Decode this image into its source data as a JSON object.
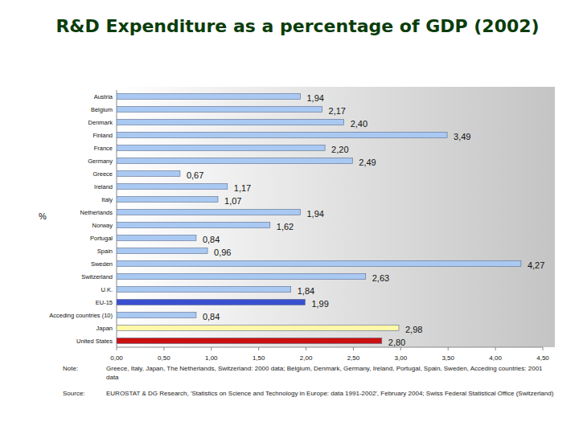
{
  "chart_data": {
    "type": "bar",
    "title": "R&D Expenditure as a percentage of GDP (2002)",
    "axis_label": "%",
    "orientation": "horizontal",
    "data_labels": true,
    "grid": false,
    "categories": [
      "Austria",
      "Belgium",
      "Denmark",
      "Finland",
      "France",
      "Germany",
      "Greece",
      "Ireland",
      "Italy",
      "Netherlands",
      "Norway",
      "Portugal",
      "Spain",
      "Sweden",
      "Switzerland",
      "U.K.",
      "EU-15",
      "Acceding countries (10)",
      "Japan",
      "United States"
    ],
    "values": [
      1.94,
      2.17,
      2.4,
      3.49,
      2.2,
      2.49,
      0.67,
      1.17,
      1.07,
      1.94,
      1.62,
      0.84,
      0.96,
      4.27,
      2.63,
      1.84,
      1.99,
      0.84,
      2.98,
      2.8
    ],
    "value_labels": [
      "1,94",
      "2,17",
      "2,40",
      "3,49",
      "2,20",
      "2,49",
      "0,67",
      "1,17",
      "1,07",
      "1,94",
      "1,62",
      "0,84",
      "0,96",
      "4,27",
      "2,63",
      "1,84",
      "1,99",
      "0,84",
      "2,98",
      "2,80"
    ],
    "colors": [
      "#a9c9f2",
      "#a9c9f2",
      "#a9c9f2",
      "#a9c9f2",
      "#a9c9f2",
      "#a9c9f2",
      "#a9c9f2",
      "#a9c9f2",
      "#a9c9f2",
      "#a9c9f2",
      "#a9c9f2",
      "#a9c9f2",
      "#a9c9f2",
      "#a9c9f2",
      "#a9c9f2",
      "#a9c9f2",
      "#3a4fd0",
      "#a9c9f2",
      "#fff8a8",
      "#cc1010"
    ],
    "xlim": [
      0,
      4.5
    ],
    "xticks": [
      {
        "value": 0,
        "label": "0,00"
      },
      {
        "value": 0.5,
        "label": "0,50"
      },
      {
        "value": 1,
        "label": "1,00"
      },
      {
        "value": 1.5,
        "label": "1,50"
      },
      {
        "value": 2,
        "label": "2,00"
      },
      {
        "value": 2.5,
        "label": "2,50"
      },
      {
        "value": 3,
        "label": "3,00"
      },
      {
        "value": 3.5,
        "label": "3,50"
      },
      {
        "value": 4,
        "label": "4,00"
      },
      {
        "value": 4.5,
        "label": "4,50"
      }
    ],
    "notes": [
      {
        "label": "Note:",
        "text": "Greece, Italy, Japan, The Netherlands, Switzerland: 2000 data; Belgium, Denmark, Germany, Ireland, Portugal, Spain, Sweden, Acceding countries: 2001 data"
      },
      {
        "label": "Source:",
        "text": "EUROSTAT & DG Research, 'Statistics on Science and Technology in Europe: data 1991-2002', February 2004; Swiss Federal Statistical Office (Switzerland)"
      }
    ]
  }
}
